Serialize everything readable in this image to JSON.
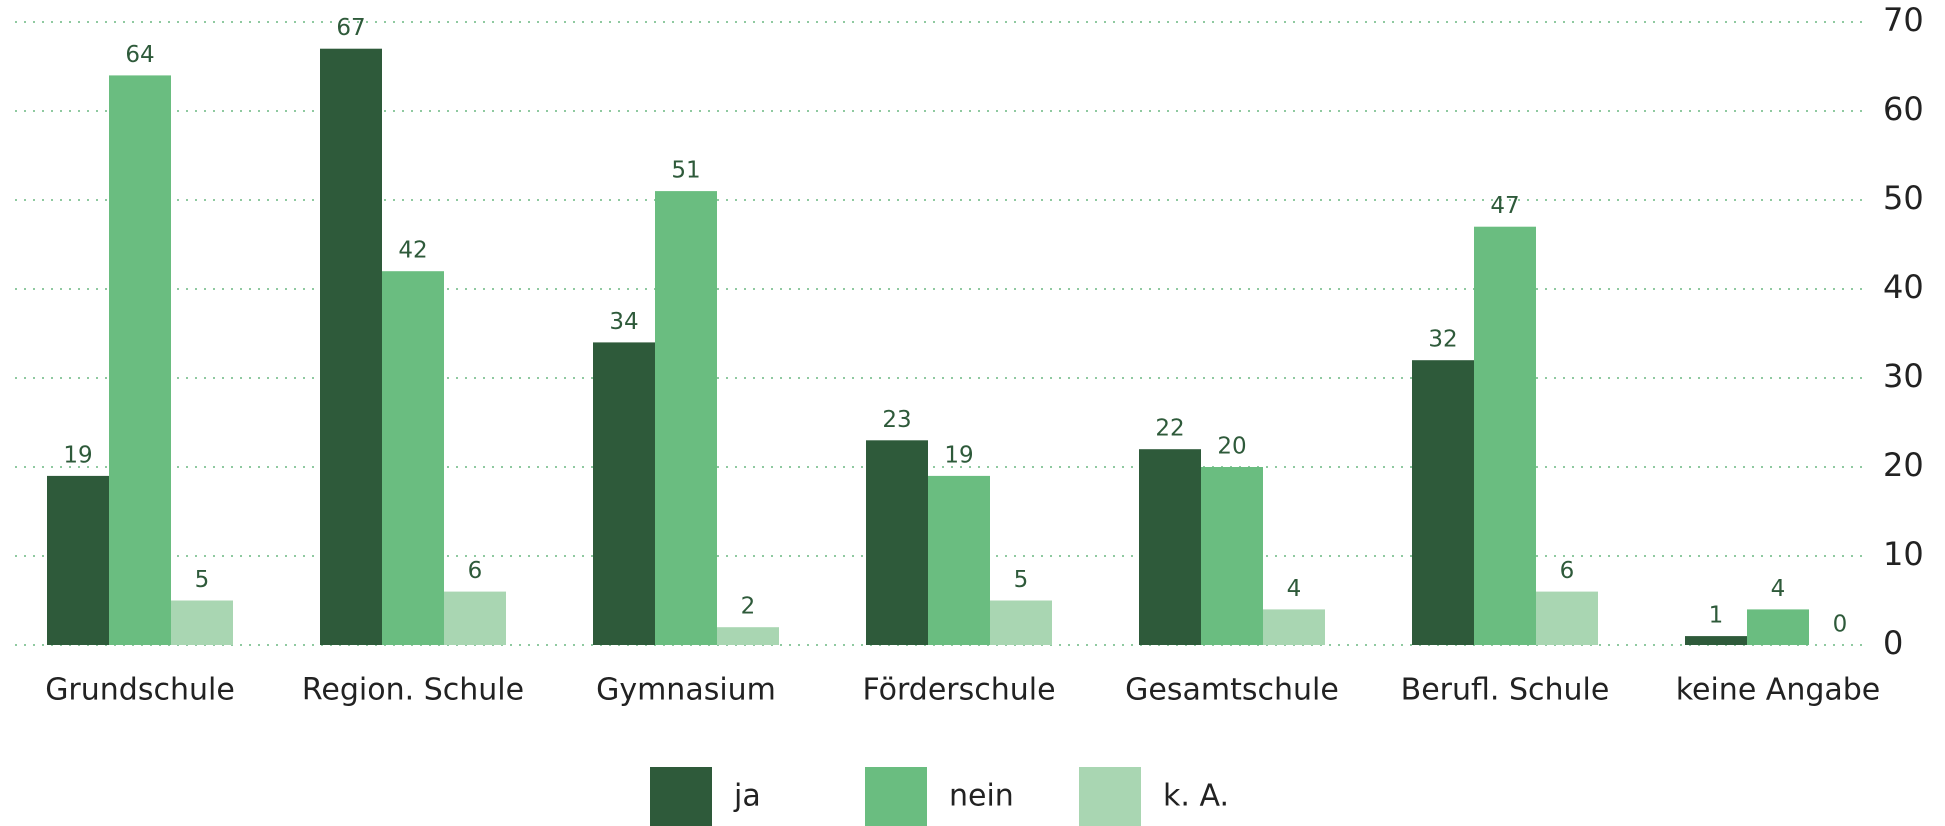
{
  "chart_data": {
    "type": "bar",
    "categories": [
      "Grundschule",
      "Region. Schule",
      "Gymnasium",
      "Förderschule",
      "Gesamtschule",
      "Berufl. Schule",
      "keine Angabe"
    ],
    "series": [
      {
        "name": "ja",
        "color": "#2e5a3a",
        "values": [
          19,
          67,
          34,
          23,
          22,
          32,
          1
        ]
      },
      {
        "name": "nein",
        "color": "#6abd80",
        "values": [
          64,
          42,
          51,
          19,
          20,
          47,
          4
        ]
      },
      {
        "name": "k. A.",
        "color": "#a9d6b2",
        "values": [
          5,
          6,
          2,
          5,
          4,
          6,
          0
        ]
      }
    ],
    "ylim": [
      0,
      70
    ],
    "yticks": [
      0,
      10,
      20,
      30,
      40,
      50,
      60,
      70
    ],
    "grid": true,
    "legend": "bottom"
  }
}
